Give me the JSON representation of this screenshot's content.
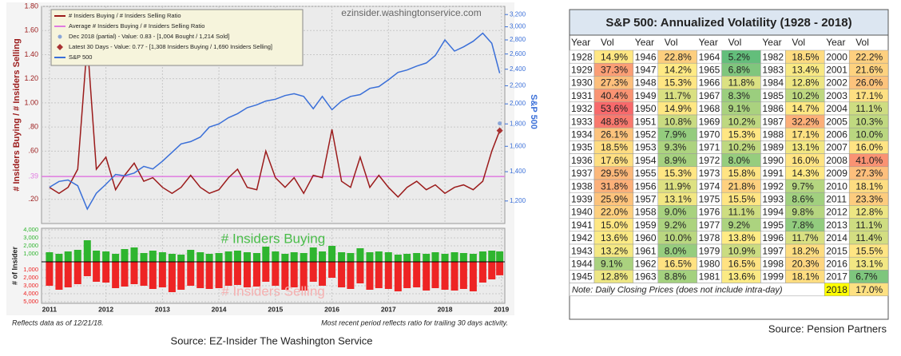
{
  "chart_data": [
    {
      "type": "line",
      "watermark": "ezinsider.washingtonservice.com",
      "ylabel": "# Insiders Buying / # Insiders Selling",
      "y2label": "S&P 500",
      "x": [
        2011,
        2011.17,
        2011.33,
        2011.5,
        2011.67,
        2011.83,
        2012,
        2012.17,
        2012.33,
        2012.5,
        2012.67,
        2012.83,
        2013,
        2013.17,
        2013.33,
        2013.5,
        2013.67,
        2013.83,
        2014,
        2014.17,
        2014.33,
        2014.5,
        2014.67,
        2014.83,
        2015,
        2015.17,
        2015.33,
        2015.5,
        2015.67,
        2015.83,
        2016,
        2016.17,
        2016.33,
        2016.5,
        2016.67,
        2016.83,
        2017,
        2017.17,
        2017.33,
        2017.5,
        2017.67,
        2017.83,
        2018,
        2018.17,
        2018.33,
        2018.5,
        2018.67,
        2018.83,
        2018.97
      ],
      "xlim": [
        2010.86,
        2019.06
      ],
      "xticks": [
        2011,
        2012,
        2013,
        2014,
        2015,
        2016,
        2017,
        2018,
        2019
      ],
      "ylim": [
        0,
        1.8
      ],
      "yticks": [
        {
          "value": 0.2,
          "label": ".20"
        },
        {
          "value": 0.39,
          "label": ".39"
        },
        {
          "value": 0.6,
          "label": ".60"
        },
        {
          "value": 0.8,
          "label": ".80"
        },
        {
          "value": 1.0,
          "label": "1.00"
        },
        {
          "value": 1.2,
          "label": "1.20"
        },
        {
          "value": 1.4,
          "label": "1.40"
        },
        {
          "value": 1.6,
          "label": "1.60"
        },
        {
          "value": 1.8,
          "label": "1.80"
        }
      ],
      "y2lim": [
        1066,
        3340
      ],
      "y2log": true,
      "y2ticks": [
        {
          "value": 1200,
          "label": "1,200"
        },
        {
          "value": 1400,
          "label": "1,400"
        },
        {
          "value": 1600,
          "label": "1,600"
        },
        {
          "value": 1800,
          "label": "1,800"
        },
        {
          "value": 2000,
          "label": "2,000"
        },
        {
          "value": 2200,
          "label": "2,200"
        },
        {
          "value": 2400,
          "label": "2,400"
        },
        {
          "value": 2600,
          "label": "2,600"
        },
        {
          "value": 2800,
          "label": "2,800"
        },
        {
          "value": 3000,
          "label": "3,000"
        },
        {
          "value": 3200,
          "label": "3,200"
        }
      ],
      "grid": true,
      "series": [
        {
          "name": "# Insiders Buying / # Insiders Selling Ratio",
          "color": "#9b1b1b",
          "values": [
            0.3,
            0.25,
            0.3,
            0.45,
            1.5,
            0.45,
            0.55,
            0.28,
            0.4,
            0.5,
            0.35,
            0.38,
            0.3,
            0.25,
            0.3,
            0.4,
            0.3,
            0.25,
            0.28,
            0.38,
            0.45,
            0.3,
            0.28,
            0.6,
            0.38,
            0.3,
            0.38,
            0.25,
            0.4,
            0.38,
            0.78,
            0.35,
            0.3,
            0.55,
            0.3,
            0.4,
            0.3,
            0.22,
            0.3,
            0.35,
            0.28,
            0.32,
            0.25,
            0.3,
            0.32,
            0.28,
            0.35,
            0.6,
            0.77
          ]
        },
        {
          "name": "S&P 500",
          "color": "#3a6fd8",
          "axis": "y2",
          "values": [
            1290,
            1330,
            1340,
            1300,
            1150,
            1250,
            1310,
            1380,
            1370,
            1390,
            1440,
            1420,
            1480,
            1550,
            1620,
            1640,
            1680,
            1770,
            1800,
            1860,
            1900,
            1960,
            1990,
            2030,
            2050,
            2090,
            2110,
            2080,
            1950,
            2080,
            1940,
            2030,
            2080,
            2100,
            2170,
            2190,
            2270,
            2360,
            2390,
            2440,
            2480,
            2580,
            2800,
            2640,
            2700,
            2780,
            2900,
            2750,
            2350
          ]
        }
      ],
      "reference_lines": [
        {
          "name": "Average # Insiders Buying / # Insiders Selling Ratio",
          "color": "#e07be0",
          "value": 0.39
        }
      ],
      "markers": [
        {
          "name": "Dec 2018 (partial) - Value: 0.83 - [1,004 Bought / 1,214 Sold]",
          "x": 2018.97,
          "value": 0.83,
          "color": "#8aa6d8",
          "shape": "circle"
        },
        {
          "name": "Latest 30 Days - Value: 0.77 - [1,308 Insiders Buying / 1,690 Insiders Selling]",
          "x": 2018.97,
          "value": 0.77,
          "color": "#a83232",
          "shape": "diamond"
        }
      ],
      "legend": "upper left"
    },
    {
      "type": "bar",
      "ylabel": "# of Insider",
      "x": [
        2011,
        2011.17,
        2011.33,
        2011.5,
        2011.67,
        2011.83,
        2012,
        2012.17,
        2012.33,
        2012.5,
        2012.67,
        2012.83,
        2013,
        2013.17,
        2013.33,
        2013.5,
        2013.67,
        2013.83,
        2014,
        2014.17,
        2014.33,
        2014.5,
        2014.67,
        2014.83,
        2015,
        2015.17,
        2015.33,
        2015.5,
        2015.67,
        2015.83,
        2016,
        2016.17,
        2016.33,
        2016.5,
        2016.67,
        2016.83,
        2017,
        2017.17,
        2017.33,
        2017.5,
        2017.67,
        2017.83,
        2018,
        2018.17,
        2018.33,
        2018.5,
        2018.67,
        2018.83,
        2018.97
      ],
      "xlim": [
        2010.86,
        2019.06
      ],
      "xticks": [
        2011,
        2012,
        2013,
        2014,
        2015,
        2016,
        2017,
        2018,
        2019
      ],
      "ylim": [
        -5200,
        4200
      ],
      "yticks": [
        {
          "value": -5000,
          "label": "5,000"
        },
        {
          "value": -4000,
          "label": "4,000"
        },
        {
          "value": -3000,
          "label": "3,000"
        },
        {
          "value": -2000,
          "label": "2,000"
        },
        {
          "value": -1000,
          "label": "1,000"
        },
        {
          "value": 1000,
          "label": "1,000"
        },
        {
          "value": 2000,
          "label": "2,000"
        },
        {
          "value": 3000,
          "label": "3,000"
        },
        {
          "value": 4000,
          "label": "4,000"
        }
      ],
      "grid": true,
      "series": [
        {
          "name": "# Insiders Buying",
          "color": "#2fb52f",
          "values": [
            1200,
            1000,
            1300,
            1500,
            2700,
            1400,
            1300,
            1000,
            1600,
            1800,
            1100,
            1400,
            1200,
            1000,
            900,
            1500,
            1200,
            1000,
            1100,
            1300,
            1400,
            1200,
            1100,
            1900,
            1300,
            1000,
            1200,
            1100,
            1800,
            1300,
            2000,
            1200,
            1100,
            1700,
            1200,
            1300,
            1200,
            900,
            1000,
            1100,
            1000,
            1200,
            1000,
            1200,
            1100,
            1000,
            1300,
            1400,
            1308
          ]
        },
        {
          "name": "# Insiders Selling",
          "color": "#ee2424",
          "values": [
            -3000,
            -3500,
            -3200,
            -2800,
            -1800,
            -2500,
            -2600,
            -3300,
            -3100,
            -2800,
            -3000,
            -3400,
            -3200,
            -3800,
            -3500,
            -3000,
            -3300,
            -3400,
            -3300,
            -3000,
            -2900,
            -3200,
            -3100,
            -2500,
            -3000,
            -3500,
            -3200,
            -3600,
            -2500,
            -3000,
            -2000,
            -3200,
            -3400,
            -2700,
            -3500,
            -3300,
            -3400,
            -3700,
            -3300,
            -3200,
            -3600,
            -3300,
            -3500,
            -3600,
            -3400,
            -3700,
            -2600,
            -2200,
            -1690
          ]
        }
      ]
    }
  ],
  "notes": [
    "Reflects data as of 12/21/18.",
    "Most recent period reflects ratio for trailing 30 days activity."
  ],
  "sources": [
    "Source: EZ-Insider The Washington Service",
    "Source: Pension Partners"
  ],
  "table": {
    "title": "S&P 500: Annualized Volatility (1928 - 2018)",
    "header": [
      "Year",
      "Vol",
      "Year",
      "Vol",
      "Year",
      "Vol",
      "Year",
      "Vol",
      "Year",
      "Vol"
    ],
    "color_scale": {
      "low": "#63be7b",
      "mid": "#ffeb84",
      "high": "#f8696b"
    },
    "rows": [
      [
        1928,
        "14.9%",
        1946,
        "22.8%",
        1964,
        "5.2%",
        1982,
        "18.5%",
        2000,
        "22.2%"
      ],
      [
        1929,
        "37.3%",
        1947,
        "14.2%",
        1965,
        "6.8%",
        1983,
        "13.4%",
        2001,
        "21.6%"
      ],
      [
        1930,
        "27.3%",
        1948,
        "15.3%",
        1966,
        "11.8%",
        1984,
        "12.8%",
        2002,
        "26.0%"
      ],
      [
        1931,
        "40.4%",
        1949,
        "11.7%",
        1967,
        "8.3%",
        1985,
        "10.2%",
        2003,
        "17.1%"
      ],
      [
        1932,
        "53.6%",
        1950,
        "14.9%",
        1968,
        "9.1%",
        1986,
        "14.7%",
        2004,
        "11.1%"
      ],
      [
        1933,
        "48.8%",
        1951,
        "10.8%",
        1969,
        "10.2%",
        1987,
        "32.2%",
        2005,
        "10.3%"
      ],
      [
        1934,
        "26.1%",
        1952,
        "7.9%",
        1970,
        "15.3%",
        1988,
        "17.1%",
        2006,
        "10.0%"
      ],
      [
        1935,
        "18.5%",
        1953,
        "9.3%",
        1971,
        "10.2%",
        1989,
        "13.1%",
        2007,
        "16.0%"
      ],
      [
        1936,
        "17.6%",
        1954,
        "8.9%",
        1972,
        "8.0%",
        1990,
        "16.0%",
        2008,
        "41.0%"
      ],
      [
        1937,
        "29.5%",
        1955,
        "15.3%",
        1973,
        "15.8%",
        1991,
        "14.3%",
        2009,
        "27.3%"
      ],
      [
        1938,
        "31.8%",
        1956,
        "11.9%",
        1974,
        "21.8%",
        1992,
        "9.7%",
        2010,
        "18.1%"
      ],
      [
        1939,
        "25.9%",
        1957,
        "13.1%",
        1975,
        "15.5%",
        1993,
        "8.6%",
        2011,
        "23.3%"
      ],
      [
        1940,
        "22.0%",
        1958,
        "9.0%",
        1976,
        "11.1%",
        1994,
        "9.8%",
        2012,
        "12.8%"
      ],
      [
        1941,
        "15.0%",
        1959,
        "9.2%",
        1977,
        "9.2%",
        1995,
        "7.8%",
        2013,
        "11.1%"
      ],
      [
        1942,
        "13.6%",
        1960,
        "10.0%",
        1978,
        "13.8%",
        1996,
        "11.7%",
        2014,
        "11.4%"
      ],
      [
        1943,
        "13.2%",
        1961,
        "8.0%",
        1979,
        "10.9%",
        1997,
        "18.2%",
        2015,
        "15.5%"
      ],
      [
        1944,
        "9.1%",
        1962,
        "16.5%",
        1980,
        "16.5%",
        1998,
        "20.3%",
        2016,
        "13.1%"
      ],
      [
        1945,
        "12.8%",
        1963,
        "8.8%",
        1981,
        "13.6%",
        1999,
        "18.1%",
        2017,
        "6.7%"
      ]
    ],
    "note": "Note: Daily Closing Prices (does not include intra-day)",
    "last_row": [
      2018,
      "17.0%"
    ]
  }
}
